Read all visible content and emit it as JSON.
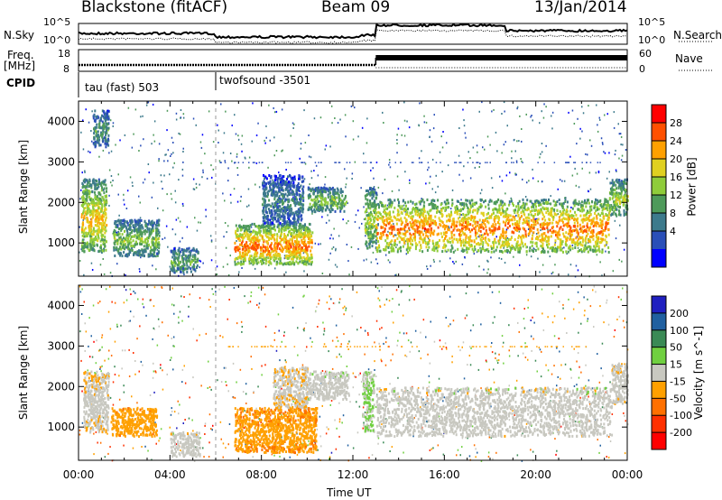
{
  "header": {
    "station": "Blackstone (fitACF)",
    "beam": "Beam 09",
    "date": "13/Jan/2014"
  },
  "top_panels": {
    "nsky_label": "N.Sky",
    "nsearch_label": "N.Search",
    "count_ticks": [
      "10^5",
      "10^0"
    ],
    "freq_label": "Freq.",
    "freq_unit": "[MHz]",
    "freq_ticks": [
      "18",
      "8"
    ],
    "nave_label": "Nave",
    "nave_ticks": [
      "60",
      "0"
    ],
    "cpid_label": "CPID",
    "cpid_segments": [
      {
        "label": "tau (fast) 503",
        "start_hour": 0,
        "end_hour": 6
      },
      {
        "label": "twofsound -3501",
        "start_hour": 6,
        "end_hour": 24
      }
    ]
  },
  "x_axis": {
    "label": "Time UT",
    "tick_labels": [
      "00:00",
      "04:00",
      "08:00",
      "12:00",
      "16:00",
      "20:00",
      "00:00"
    ],
    "range_hours": [
      0,
      24
    ]
  },
  "chart_data": [
    {
      "type": "heatmap",
      "title": "",
      "quantity": "Power",
      "ylabel": "Slant Range [km]",
      "ylim": [
        180,
        4500
      ],
      "y_ticks": [
        1000,
        2000,
        3000,
        4000
      ],
      "colorbar_label": "Power [dB]",
      "colorbar_ticks": [
        "28",
        "24",
        "20",
        "16",
        "12",
        "8",
        "4"
      ],
      "colorbar_range": [
        0,
        32
      ],
      "colors": [
        "#0000ff",
        "#2a4fb8",
        "#3d7a8c",
        "#4e9a5a",
        "#8fcc3a",
        "#e0d020",
        "#ffa000",
        "#ff5000",
        "#ff0000"
      ],
      "regions": [
        {
          "t0": 0.1,
          "t1": 1.2,
          "r0": 800,
          "r1": 2600,
          "peak": 22
        },
        {
          "t0": 0.6,
          "t1": 1.3,
          "r0": 3400,
          "r1": 4300,
          "peak": 12
        },
        {
          "t0": 1.5,
          "t1": 3.5,
          "r0": 700,
          "r1": 1600,
          "peak": 16
        },
        {
          "t0": 4.0,
          "t1": 5.2,
          "r0": 300,
          "r1": 900,
          "peak": 14
        },
        {
          "t0": 6.8,
          "t1": 10.2,
          "r0": 500,
          "r1": 1500,
          "peak": 26
        },
        {
          "t0": 8.0,
          "t1": 9.8,
          "r0": 1500,
          "r1": 2700,
          "peak": 10
        },
        {
          "t0": 10.0,
          "t1": 11.7,
          "r0": 1800,
          "r1": 2400,
          "peak": 16
        },
        {
          "t0": 12.5,
          "t1": 13.0,
          "r0": 900,
          "r1": 2400,
          "peak": 18
        },
        {
          "t0": 13.0,
          "t1": 23.2,
          "r0": 800,
          "r1": 2100,
          "peak": 26
        },
        {
          "t0": 23.2,
          "t1": 24.0,
          "r0": 1700,
          "r1": 2600,
          "peak": 18
        }
      ]
    },
    {
      "type": "heatmap",
      "title": "",
      "quantity": "Velocity",
      "ylabel": "Slant Range [km]",
      "ylim": [
        180,
        4500
      ],
      "y_ticks": [
        1000,
        2000,
        3000,
        4000
      ],
      "colorbar_label": "Velocity [m s^-1]",
      "colorbar_ticks": [
        "200",
        "100",
        "50",
        "15",
        "-15",
        "-50",
        "-100",
        "-200"
      ],
      "colorbar_range": [
        -250,
        250
      ],
      "colors": [
        "#2020c0",
        "#2060a0",
        "#3a8a55",
        "#70d040",
        "#c8c8c0",
        "#ffa000",
        "#ff7000",
        "#ff3000",
        "#ff0000"
      ],
      "regions": [
        {
          "t0": 0.2,
          "t1": 1.3,
          "r0": 900,
          "r1": 2400,
          "v": -15
        },
        {
          "t0": 1.4,
          "t1": 3.4,
          "r0": 800,
          "r1": 1500,
          "v": -60
        },
        {
          "t0": 4.0,
          "t1": 5.3,
          "r0": 300,
          "r1": 900,
          "v": 0
        },
        {
          "t0": 6.8,
          "t1": 10.4,
          "r0": 400,
          "r1": 1500,
          "v": -70
        },
        {
          "t0": 8.5,
          "t1": 10.0,
          "r0": 1500,
          "r1": 2500,
          "v": -20
        },
        {
          "t0": 10.0,
          "t1": 11.8,
          "r0": 1700,
          "r1": 2400,
          "v": 5
        },
        {
          "t0": 12.4,
          "t1": 12.9,
          "r0": 900,
          "r1": 2400,
          "v": 30
        },
        {
          "t0": 13.0,
          "t1": 23.3,
          "r0": 800,
          "r1": 2000,
          "v": 0
        },
        {
          "t0": 23.3,
          "t1": 24.0,
          "r0": 1600,
          "r1": 2600,
          "v": -10
        }
      ]
    }
  ]
}
